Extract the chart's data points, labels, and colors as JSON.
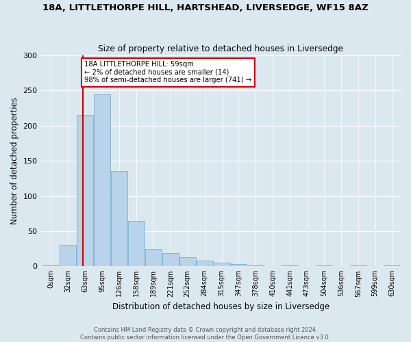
{
  "title1": "18A, LITTLETHORPE HILL, HARTSHEAD, LIVERSEDGE, WF15 8AZ",
  "title2": "Size of property relative to detached houses in Liversedge",
  "xlabel": "Distribution of detached houses by size in Liversedge",
  "ylabel": "Number of detached properties",
  "categories": [
    "0sqm",
    "32sqm",
    "63sqm",
    "95sqm",
    "126sqm",
    "158sqm",
    "189sqm",
    "221sqm",
    "252sqm",
    "284sqm",
    "315sqm",
    "347sqm",
    "378sqm",
    "410sqm",
    "441sqm",
    "473sqm",
    "504sqm",
    "536sqm",
    "567sqm",
    "599sqm",
    "630sqm"
  ],
  "values": [
    1,
    30,
    215,
    245,
    136,
    65,
    25,
    19,
    13,
    8,
    5,
    3,
    1,
    0,
    1,
    0,
    1,
    0,
    1,
    0,
    1
  ],
  "bar_color": "#b8d4ea",
  "bar_edge_color": "#7aafd4",
  "annotation_text_line1": "18A LITTLETHORPE HILL: 59sqm",
  "annotation_text_line2": "← 2% of detached houses are smaller (14)",
  "annotation_text_line3": "98% of semi-detached houses are larger (741) →",
  "annotation_box_facecolor": "#ffffff",
  "annotation_box_edgecolor": "#cc0000",
  "vline_color": "#cc0000",
  "bg_color": "#dce8f0",
  "grid_color": "#ffffff",
  "footnote1": "Contains HM Land Registry data © Crown copyright and database right 2024.",
  "footnote2": "Contains public sector information licensed under the Open Government Licence v3.0.",
  "ylim": [
    0,
    300
  ],
  "yticks": [
    0,
    50,
    100,
    150,
    200,
    250,
    300
  ]
}
